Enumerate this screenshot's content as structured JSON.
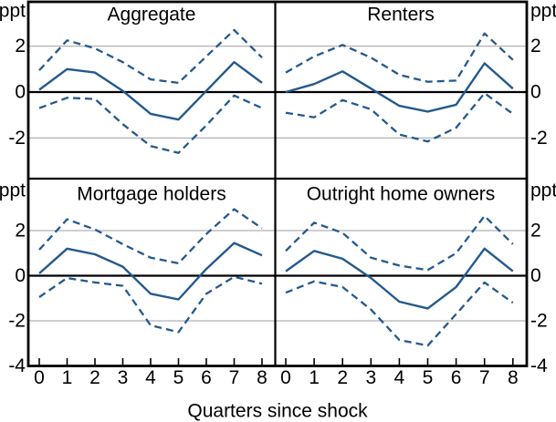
{
  "chart_data": {
    "type": "line",
    "layout": "2x2 small-multiple panels with solid point estimate and dashed confidence bands",
    "xlabel": "Quarters since shock",
    "y_unit_label": "ppt",
    "x": [
      0,
      1,
      2,
      3,
      4,
      5,
      6,
      7,
      8
    ],
    "x_tick_labels": [
      "0",
      "1",
      "2",
      "3",
      "4",
      "5",
      "6",
      "7",
      "8"
    ],
    "grid": true,
    "legend": "none",
    "rows": [
      {
        "ylim": [
          -3.8,
          3.9
        ],
        "y_tick_values": [
          2,
          0,
          -2
        ],
        "y_tick_labels": [
          "2",
          "0",
          "-2"
        ]
      },
      {
        "ylim": [
          -4,
          4.3
        ],
        "y_tick_values": [
          2,
          0,
          -2,
          -4
        ],
        "y_tick_labels": [
          "2",
          "0",
          "-2",
          "-4"
        ]
      }
    ],
    "panels": [
      {
        "title": "Aggregate",
        "row": 0,
        "col": 0,
        "series": [
          {
            "name": "solid-line",
            "style": "solid",
            "values": [
              0.1,
              1.0,
              0.85,
              0.05,
              -0.95,
              -1.2,
              0.05,
              1.3,
              0.4
            ]
          },
          {
            "name": "upper-dashed-band",
            "style": "dashed",
            "values": [
              0.95,
              2.25,
              1.9,
              1.3,
              0.55,
              0.4,
              1.55,
              2.7,
              1.5
            ]
          },
          {
            "name": "lower-dashed-band",
            "style": "dashed",
            "values": [
              -0.7,
              -0.25,
              -0.3,
              -1.4,
              -2.35,
              -2.65,
              -1.45,
              -0.15,
              -0.7
            ]
          }
        ]
      },
      {
        "title": "Renters",
        "row": 0,
        "col": 1,
        "series": [
          {
            "name": "solid-line",
            "style": "solid",
            "values": [
              0.0,
              0.35,
              0.9,
              0.15,
              -0.6,
              -0.85,
              -0.55,
              1.25,
              0.15
            ]
          },
          {
            "name": "upper-dashed-band",
            "style": "dashed",
            "values": [
              0.85,
              1.55,
              2.05,
              1.5,
              0.75,
              0.45,
              0.5,
              2.55,
              1.4
            ]
          },
          {
            "name": "lower-dashed-band",
            "style": "dashed",
            "values": [
              -0.9,
              -1.1,
              -0.35,
              -0.75,
              -1.85,
              -2.15,
              -1.55,
              -0.05,
              -0.95
            ]
          }
        ]
      },
      {
        "title": "Mortgage holders",
        "row": 1,
        "col": 0,
        "series": [
          {
            "name": "solid-line",
            "style": "solid",
            "values": [
              0.1,
              1.2,
              0.95,
              0.4,
              -0.8,
              -1.05,
              0.3,
              1.45,
              0.9
            ]
          },
          {
            "name": "upper-dashed-band",
            "style": "dashed",
            "values": [
              1.15,
              2.5,
              2.05,
              1.4,
              0.8,
              0.55,
              1.85,
              2.95,
              2.1
            ]
          },
          {
            "name": "lower-dashed-band",
            "style": "dashed",
            "values": [
              -0.95,
              -0.1,
              -0.3,
              -0.45,
              -2.2,
              -2.5,
              -0.8,
              -0.05,
              -0.35
            ]
          }
        ]
      },
      {
        "title": "Outright home owners",
        "row": 1,
        "col": 1,
        "series": [
          {
            "name": "solid-line",
            "style": "solid",
            "values": [
              0.2,
              1.1,
              0.75,
              -0.1,
              -1.15,
              -1.45,
              -0.5,
              1.2,
              0.2
            ]
          },
          {
            "name": "upper-dashed-band",
            "style": "dashed",
            "values": [
              1.1,
              2.35,
              1.9,
              0.8,
              0.45,
              0.25,
              1.0,
              2.65,
              1.4
            ]
          },
          {
            "name": "lower-dashed-band",
            "style": "dashed",
            "values": [
              -0.75,
              -0.25,
              -0.5,
              -1.5,
              -2.85,
              -3.1,
              -1.7,
              -0.3,
              -1.2
            ]
          }
        ]
      }
    ],
    "colors": {
      "line": "#24598C",
      "grid": "#b2b2b2",
      "axis": "#000000",
      "background": "#ffffff",
      "text": "#000000"
    }
  }
}
